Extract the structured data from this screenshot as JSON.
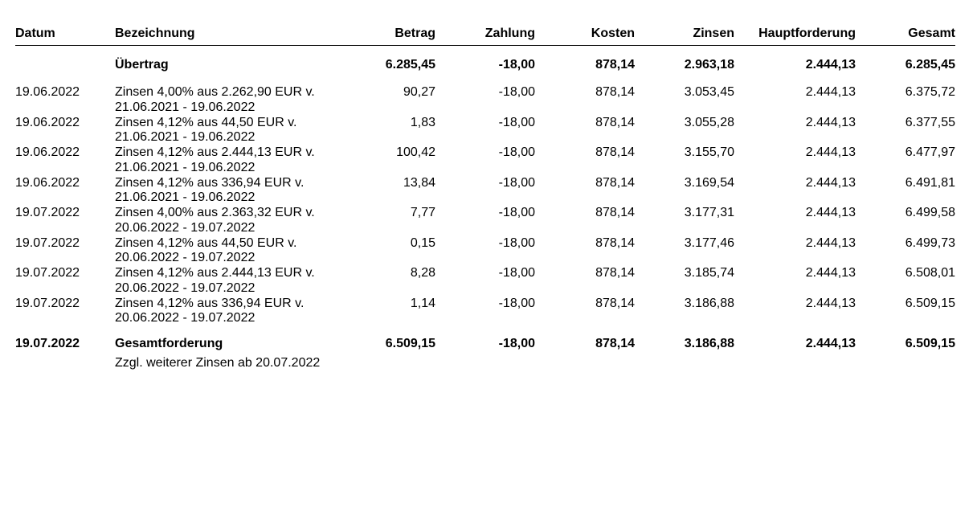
{
  "table": {
    "headers": {
      "datum": "Datum",
      "bezeichnung": "Bezeichnung",
      "betrag": "Betrag",
      "zahlung": "Zahlung",
      "kosten": "Kosten",
      "zinsen": "Zinsen",
      "hauptforderung": "Hauptforderung",
      "gesamt": "Gesamt"
    },
    "uebertrag": {
      "label": "Übertrag",
      "betrag": "6.285,45",
      "zahlung": "-18,00",
      "kosten": "878,14",
      "zinsen": "2.963,18",
      "hauptforderung": "2.444,13",
      "gesamt": "6.285,45"
    },
    "rows": [
      {
        "datum": "19.06.2022",
        "desc1": "Zinsen 4,00% aus 2.262,90 EUR v.",
        "desc2": "21.06.2021 - 19.06.2022",
        "betrag": "90,27",
        "zahlung": "-18,00",
        "kosten": "878,14",
        "zinsen": "3.053,45",
        "hauptforderung": "2.444,13",
        "gesamt": "6.375,72"
      },
      {
        "datum": "19.06.2022",
        "desc1": "Zinsen 4,12% aus 44,50 EUR v.",
        "desc2": "21.06.2021 - 19.06.2022",
        "betrag": "1,83",
        "zahlung": "-18,00",
        "kosten": "878,14",
        "zinsen": "3.055,28",
        "hauptforderung": "2.444,13",
        "gesamt": "6.377,55"
      },
      {
        "datum": "19.06.2022",
        "desc1": "Zinsen 4,12% aus 2.444,13 EUR v.",
        "desc2": "21.06.2021 - 19.06.2022",
        "betrag": "100,42",
        "zahlung": "-18,00",
        "kosten": "878,14",
        "zinsen": "3.155,70",
        "hauptforderung": "2.444,13",
        "gesamt": "6.477,97"
      },
      {
        "datum": "19.06.2022",
        "desc1": "Zinsen 4,12% aus 336,94 EUR v.",
        "desc2": "21.06.2021 - 19.06.2022",
        "betrag": "13,84",
        "zahlung": "-18,00",
        "kosten": "878,14",
        "zinsen": "3.169,54",
        "hauptforderung": "2.444,13",
        "gesamt": "6.491,81"
      },
      {
        "datum": "19.07.2022",
        "desc1": "Zinsen 4,00% aus 2.363,32 EUR v.",
        "desc2": "20.06.2022 - 19.07.2022",
        "betrag": "7,77",
        "zahlung": "-18,00",
        "kosten": "878,14",
        "zinsen": "3.177,31",
        "hauptforderung": "2.444,13",
        "gesamt": "6.499,58"
      },
      {
        "datum": "19.07.2022",
        "desc1": "Zinsen 4,12% aus 44,50 EUR v.",
        "desc2": "20.06.2022 - 19.07.2022",
        "betrag": "0,15",
        "zahlung": "-18,00",
        "kosten": "878,14",
        "zinsen": "3.177,46",
        "hauptforderung": "2.444,13",
        "gesamt": "6.499,73"
      },
      {
        "datum": "19.07.2022",
        "desc1": "Zinsen 4,12% aus 2.444,13 EUR v.",
        "desc2": "20.06.2022 - 19.07.2022",
        "betrag": "8,28",
        "zahlung": "-18,00",
        "kosten": "878,14",
        "zinsen": "3.185,74",
        "hauptforderung": "2.444,13",
        "gesamt": "6.508,01"
      },
      {
        "datum": "19.07.2022",
        "desc1": "Zinsen 4,12% aus 336,94 EUR v.",
        "desc2": "20.06.2022 - 19.07.2022",
        "betrag": "1,14",
        "zahlung": "-18,00",
        "kosten": "878,14",
        "zinsen": "3.186,88",
        "hauptforderung": "2.444,13",
        "gesamt": "6.509,15"
      }
    ],
    "total": {
      "datum": "19.07.2022",
      "label": "Gesamtforderung",
      "betrag": "6.509,15",
      "zahlung": "-18,00",
      "kosten": "878,14",
      "zinsen": "3.186,88",
      "hauptforderung": "2.444,13",
      "gesamt": "6.509,15"
    },
    "note": "Zzgl. weiterer Zinsen ab 20.07.2022"
  }
}
